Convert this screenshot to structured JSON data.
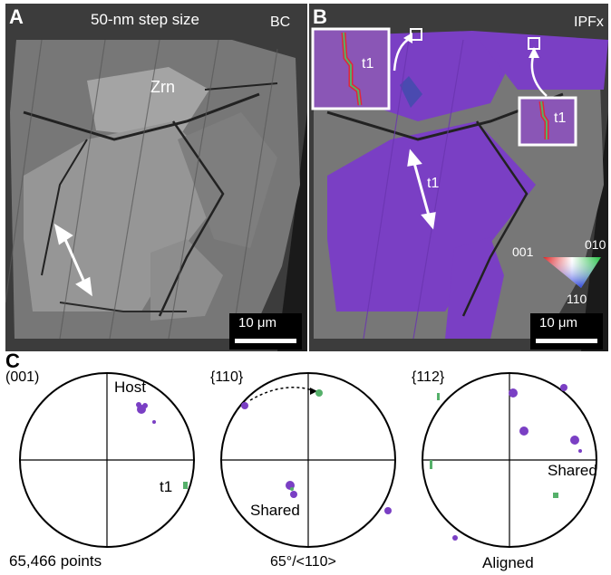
{
  "figure": {
    "panel_a": {
      "letter": "A",
      "title": "50-nm step size",
      "corner_label": "BC",
      "grain_label": "Zrn",
      "scale_label": "10 μm"
    },
    "panel_b": {
      "letter": "B",
      "corner_label": "IPFx",
      "twin_label": "t1",
      "inset_label_left": "t1",
      "inset_label_right": "t1",
      "legend": {
        "top_left": "001",
        "top_right": "010",
        "bottom": "110"
      },
      "scale_label": "10 μm"
    },
    "panel_c": {
      "letter": "C",
      "plots": [
        {
          "plane": "(001)",
          "labels": [
            "Host",
            "t1"
          ],
          "caption": "65,466 points"
        },
        {
          "plane": "{110}",
          "labels": [
            "Shared"
          ],
          "caption": "65°/<110>"
        },
        {
          "plane": "{112}",
          "labels": [
            "Shared"
          ],
          "caption": "Aligned"
        }
      ]
    },
    "colors": {
      "host": "#7a3fc4",
      "twin": "#55b06a",
      "boundary": "#e0273a",
      "grain": "#9a9a9a"
    }
  }
}
